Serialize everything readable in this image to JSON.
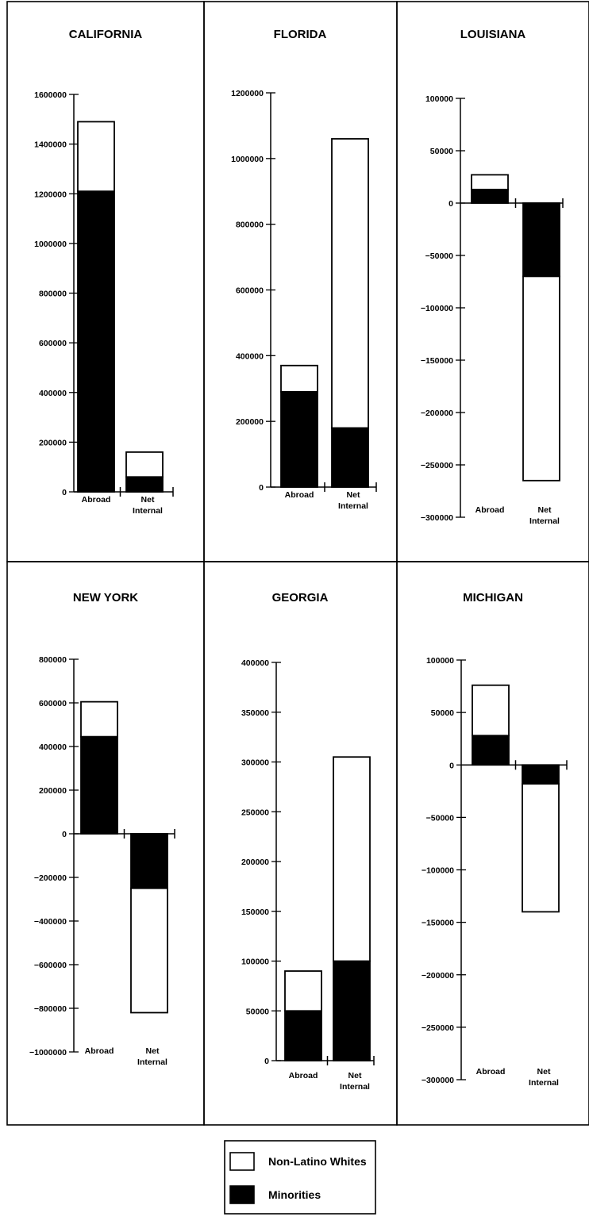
{
  "legend": [
    {
      "label": "Non-Latino Whites",
      "color": "#ffffff"
    },
    {
      "label": "Minorities",
      "color": "#000000"
    }
  ],
  "chart_data": [
    {
      "type": "bar",
      "stacked": true,
      "title": "CALIFORNIA",
      "categories": [
        "Abroad",
        "Net Internal"
      ],
      "ylim": [
        0,
        1600000
      ],
      "yticks": [
        0,
        200000,
        400000,
        600000,
        800000,
        1000000,
        1200000,
        1400000,
        1600000
      ],
      "series": [
        {
          "name": "Minorities",
          "values": [
            1210000,
            60000
          ]
        },
        {
          "name": "Non-Latino Whites",
          "values": [
            280000,
            100000
          ]
        }
      ]
    },
    {
      "type": "bar",
      "stacked": true,
      "title": "FLORIDA",
      "categories": [
        "Abroad",
        "Net Internal"
      ],
      "ylim": [
        0,
        1200000
      ],
      "yticks": [
        0,
        200000,
        400000,
        600000,
        800000,
        1000000,
        1200000
      ],
      "series": [
        {
          "name": "Minorities",
          "values": [
            290000,
            180000
          ]
        },
        {
          "name": "Non-Latino Whites",
          "values": [
            80000,
            880000
          ]
        }
      ]
    },
    {
      "type": "bar",
      "stacked": true,
      "title": "LOUISIANA",
      "categories": [
        "Abroad",
        "Net Internal"
      ],
      "ylim": [
        -300000,
        100000
      ],
      "yticks": [
        -300000,
        -250000,
        -200000,
        -150000,
        -100000,
        -50000,
        0,
        50000,
        100000
      ],
      "series": [
        {
          "name": "Minorities",
          "values": [
            13000,
            -70000
          ]
        },
        {
          "name": "Non-Latino Whites",
          "values": [
            14000,
            -195000
          ]
        }
      ]
    },
    {
      "type": "bar",
      "stacked": true,
      "title": "NEW YORK",
      "categories": [
        "Abroad",
        "Net Internal"
      ],
      "ylim": [
        -1000000,
        800000
      ],
      "yticks": [
        -1000000,
        -800000,
        -600000,
        -400000,
        -200000,
        0,
        200000,
        400000,
        600000,
        800000
      ],
      "series": [
        {
          "name": "Minorities",
          "values": [
            445000,
            -250000
          ]
        },
        {
          "name": "Non-Latino Whites",
          "values": [
            160000,
            -570000
          ]
        }
      ]
    },
    {
      "type": "bar",
      "stacked": true,
      "title": "GEORGIA",
      "categories": [
        "Abroad",
        "Net Internal"
      ],
      "ylim": [
        0,
        400000
      ],
      "yticks": [
        0,
        50000,
        100000,
        150000,
        200000,
        250000,
        300000,
        350000,
        400000
      ],
      "series": [
        {
          "name": "Minorities",
          "values": [
            50000,
            100000
          ]
        },
        {
          "name": "Non-Latino Whites",
          "values": [
            40000,
            205000
          ]
        }
      ]
    },
    {
      "type": "bar",
      "stacked": true,
      "title": "MICHIGAN",
      "categories": [
        "Abroad",
        "Net Internal"
      ],
      "ylim": [
        -300000,
        100000
      ],
      "yticks": [
        -300000,
        -250000,
        -200000,
        -150000,
        -100000,
        -50000,
        0,
        50000,
        100000
      ],
      "series": [
        {
          "name": "Minorities",
          "values": [
            28000,
            -18000
          ]
        },
        {
          "name": "Non-Latino Whites",
          "values": [
            48000,
            -122000
          ]
        }
      ]
    }
  ]
}
